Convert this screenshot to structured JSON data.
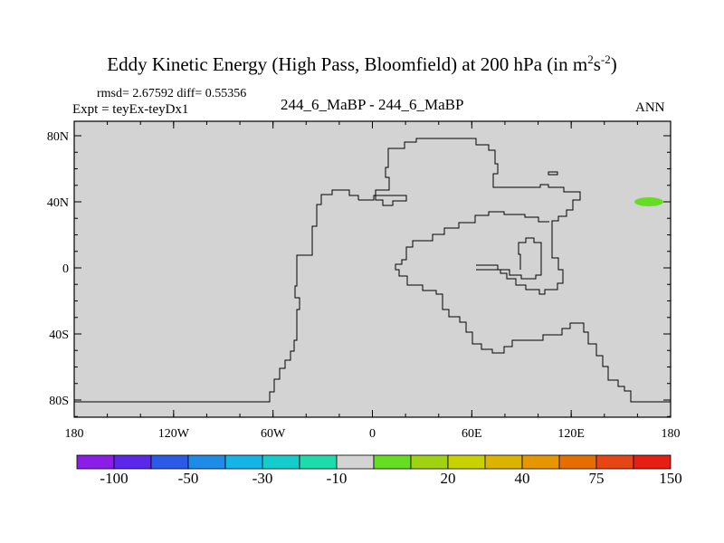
{
  "header": {
    "title": "Eddy Kinetic Energy (High Pass, Bloomfield) at 200 hPa (in m",
    "title_sup1": "2",
    "title_mid": "s",
    "title_sup2": "-2",
    "title_end": ")",
    "stats": "rmsd= 2.67592 diff= 0.55356",
    "expt": "Expt = teyEx-teyDx1",
    "center_label": "244_6_MaBP - 244_6_MaBP",
    "right_label": "ANN"
  },
  "map": {
    "background_color": "#d3d3d3",
    "coastline_color": "#000000",
    "anomaly_color": "#66dd22",
    "y_ticks": [
      "80N",
      "40N",
      "0",
      "40S",
      "80S"
    ],
    "x_ticks": [
      "180",
      "120W",
      "60W",
      "0",
      "60E",
      "120E",
      "180"
    ]
  },
  "colorbar": {
    "colors": [
      "#8a1ee6",
      "#5a28e6",
      "#2a5ae6",
      "#1e8ce6",
      "#14b4e6",
      "#14cccc",
      "#1edcaa",
      "#d3d3d3",
      "#66dd22",
      "#a0d214",
      "#c8d200",
      "#dcb400",
      "#e69600",
      "#e66e00",
      "#e64614",
      "#e61e14"
    ],
    "labels": [
      "-100",
      "-50",
      "-30",
      "-10",
      "20",
      "40",
      "75",
      "150"
    ]
  }
}
